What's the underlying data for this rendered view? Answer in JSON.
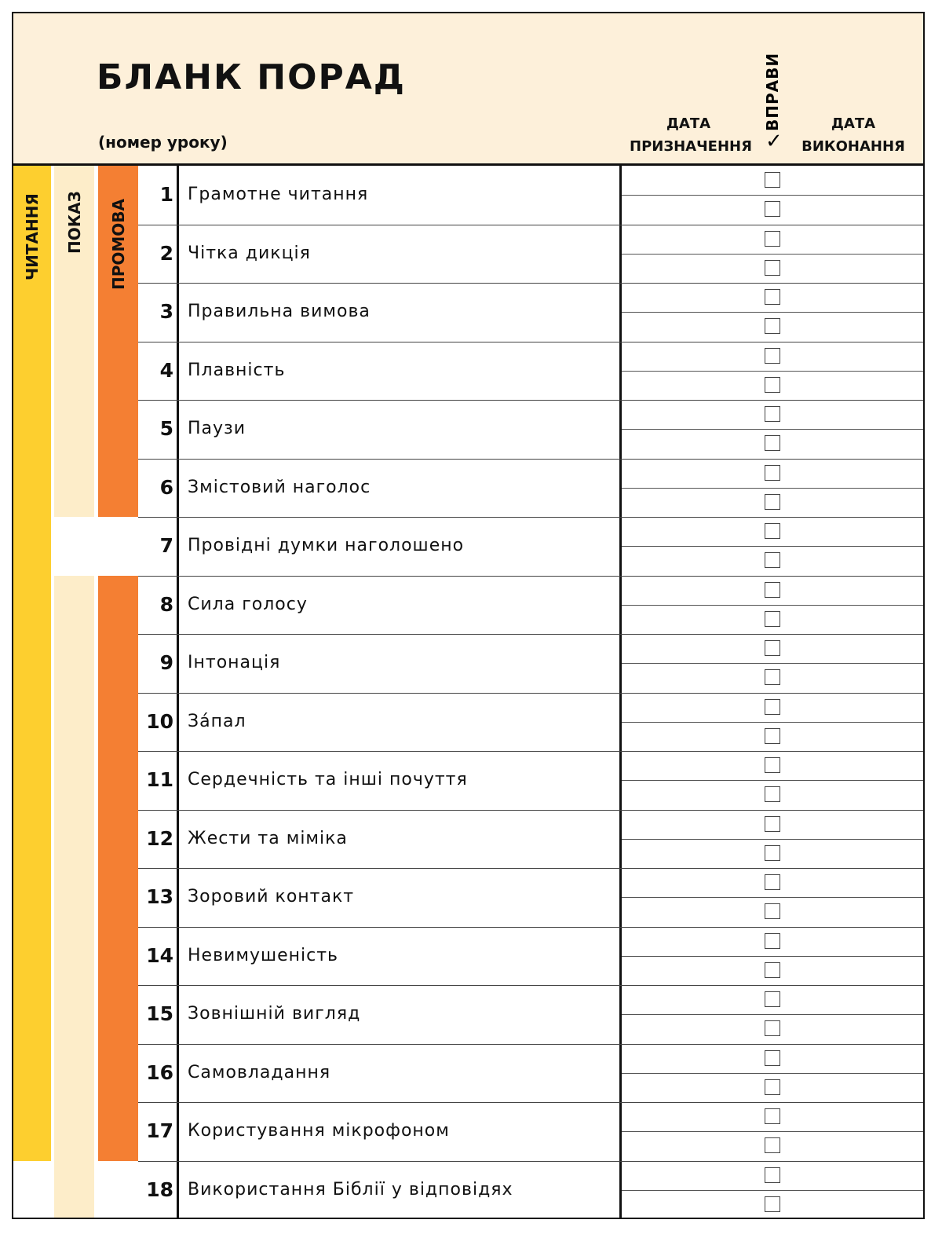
{
  "header": {
    "title": "БЛАНК ПОРАД",
    "subtitle": "(номер уроку)",
    "date_assigned": "ДАТА ПРИЗНАЧЕННЯ",
    "exercises": "ВПРАВИ",
    "check_mark": "✓",
    "date_completed": "ДАТА ВИКОНАННЯ"
  },
  "categories": {
    "reading": {
      "label": "ЧИТАННЯ",
      "color": "#fdcf2f"
    },
    "demo": {
      "label": "ПОКАЗ",
      "color": "#fdedc9"
    },
    "talk": {
      "label": "ПРОМОВА",
      "color": "#f47f33"
    }
  },
  "rows": [
    {
      "num": "1",
      "text": "Грамотне читання"
    },
    {
      "num": "2",
      "text": "Чітка дикція"
    },
    {
      "num": "3",
      "text": "Правильна вимова"
    },
    {
      "num": "4",
      "text": "Плавність"
    },
    {
      "num": "5",
      "text": "Паузи"
    },
    {
      "num": "6",
      "text": "Змістовий наголос"
    },
    {
      "num": "7",
      "text": "Провідні думки наголошено"
    },
    {
      "num": "8",
      "text": "Сила голосу"
    },
    {
      "num": "9",
      "text": "Інтонація"
    },
    {
      "num": "10",
      "text": "Зáпал"
    },
    {
      "num": "11",
      "text": "Сердечність та інші почуття"
    },
    {
      "num": "12",
      "text": "Жести та міміка"
    },
    {
      "num": "13",
      "text": "Зоровий контакт"
    },
    {
      "num": "14",
      "text": "Невимушеність"
    },
    {
      "num": "15",
      "text": "Зовнішній вигляд"
    },
    {
      "num": "16",
      "text": "Самовладання"
    },
    {
      "num": "17",
      "text": "Користування мікрофоном"
    },
    {
      "num": "18",
      "text": "Використання Біблії у відповідях"
    }
  ]
}
